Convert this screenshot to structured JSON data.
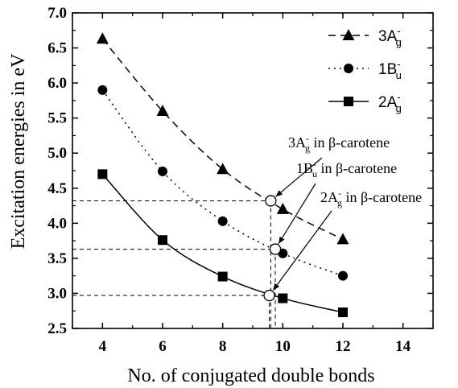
{
  "chart_data": {
    "type": "line",
    "xlabel": "No. of conjugated double bonds",
    "ylabel": "Excitation energies in eV",
    "xlim": [
      3,
      15
    ],
    "ylim": [
      2.5,
      7.0
    ],
    "xticks": [
      "4",
      "6",
      "8",
      "10",
      "12",
      "14"
    ],
    "yticks": [
      "2.5",
      "3.0",
      "3.5",
      "4.0",
      "4.5",
      "5.0",
      "5.5",
      "6.0",
      "6.5",
      "7.0"
    ],
    "legend_position": "top-right",
    "series": [
      {
        "name": "3A",
        "sup": "-",
        "sub": "g",
        "marker": "triangle",
        "line": "dashed",
        "x": [
          4,
          6,
          8,
          10,
          12
        ],
        "values": [
          6.63,
          5.6,
          4.77,
          4.2,
          3.77
        ]
      },
      {
        "name": "1B",
        "sup": "-",
        "sub": "u",
        "marker": "circle",
        "line": "dotted",
        "x": [
          4,
          6,
          8,
          10,
          12
        ],
        "values": [
          5.9,
          4.74,
          4.03,
          3.57,
          3.25
        ]
      },
      {
        "name": "2A",
        "sup": "-",
        "sub": "g",
        "marker": "square",
        "line": "solid",
        "x": [
          4,
          6,
          8,
          10,
          12
        ],
        "values": [
          4.7,
          3.76,
          3.24,
          2.93,
          2.73
        ]
      }
    ],
    "beta_carotene_points": [
      {
        "series": "3A",
        "x": 9.6,
        "y": 4.32
      },
      {
        "series": "1B",
        "x": 9.75,
        "y": 3.63
      },
      {
        "series": "2A",
        "x": 9.55,
        "y": 2.97
      }
    ],
    "annotations": [
      {
        "state": "3A",
        "sup": "-",
        "sub": "g",
        "text": " in β-carotene"
      },
      {
        "state": "1B",
        "sup": "-",
        "sub": "u",
        "text": " in β-carotene"
      },
      {
        "state": "2A",
        "sup": "-",
        "sub": "g",
        "text": " in β-carotene"
      }
    ]
  }
}
